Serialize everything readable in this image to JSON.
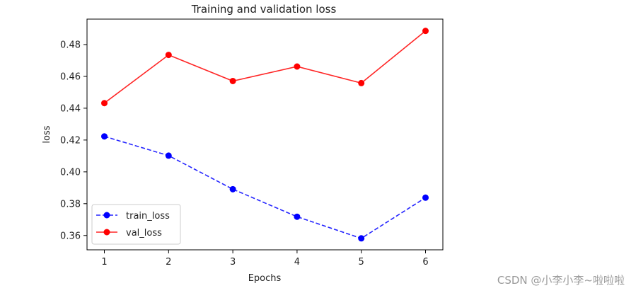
{
  "chart_data": {
    "type": "line",
    "title": "Training and validation loss",
    "xlabel": "Epochs",
    "ylabel": "loss",
    "x": [
      1,
      2,
      3,
      4,
      5,
      6
    ],
    "xticks": [
      "1",
      "2",
      "3",
      "4",
      "5",
      "6"
    ],
    "xlim": [
      0.73,
      6.27
    ],
    "ylim": [
      0.351,
      0.496
    ],
    "yticks": [
      "0.36",
      "0.38",
      "0.40",
      "0.42",
      "0.44",
      "0.46",
      "0.48"
    ],
    "grid": false,
    "legend_position": "lower-left",
    "series": [
      {
        "name": "train_loss",
        "color": "#0000ff",
        "line_style": "dashed",
        "marker": "circle",
        "values": [
          0.4223,
          0.4102,
          0.3891,
          0.3718,
          0.3582,
          0.3838
        ]
      },
      {
        "name": "val_loss",
        "color": "#ff0000",
        "line_style": "solid",
        "marker": "circle",
        "values": [
          0.4432,
          0.4735,
          0.4571,
          0.4662,
          0.4558,
          0.4886
        ]
      }
    ]
  },
  "watermark": "CSDN @小李小李~啦啦啦"
}
